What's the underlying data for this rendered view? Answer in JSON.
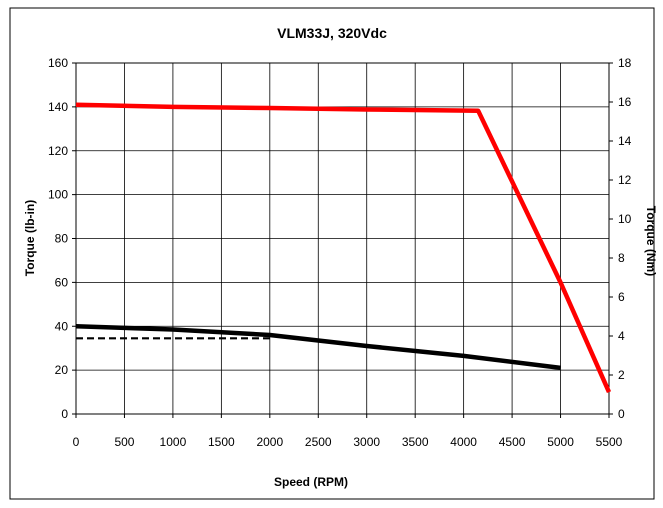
{
  "chart_data": {
    "type": "line",
    "title": "VLM33J, 320Vdc",
    "xlabel": "Speed  (RPM)",
    "ylabel_left": "Torque (lb-in)",
    "ylabel_right": "Torque (Nm)",
    "xlim": [
      0,
      5500
    ],
    "ylim_left": [
      0,
      160
    ],
    "ylim_right": [
      0,
      18
    ],
    "x_ticks": [
      0,
      500,
      1000,
      1500,
      2000,
      2500,
      3000,
      3500,
      4000,
      4500,
      5000,
      5500
    ],
    "y_ticks_left": [
      0,
      20,
      40,
      60,
      80,
      100,
      120,
      140,
      160
    ],
    "y_ticks_right": [
      0,
      2,
      4,
      6,
      8,
      10,
      12,
      14,
      16,
      18
    ],
    "grid": true,
    "series": [
      {
        "color": "#ff0000",
        "style": "solid",
        "x": [
          0,
          1000,
          2000,
          3000,
          4150,
          5000,
          5500
        ],
        "y": [
          141,
          140,
          139.5,
          138.8,
          138.2,
          60,
          10
        ]
      },
      {
        "color": "#000000",
        "style": "solid",
        "x": [
          0,
          1000,
          2000,
          3000,
          4000,
          5000
        ],
        "y": [
          40,
          38.5,
          36,
          31,
          26.5,
          21
        ]
      },
      {
        "color": "#000000",
        "style": "dashed",
        "x": [
          0,
          2000
        ],
        "y": [
          34.5,
          34.5
        ]
      }
    ]
  }
}
